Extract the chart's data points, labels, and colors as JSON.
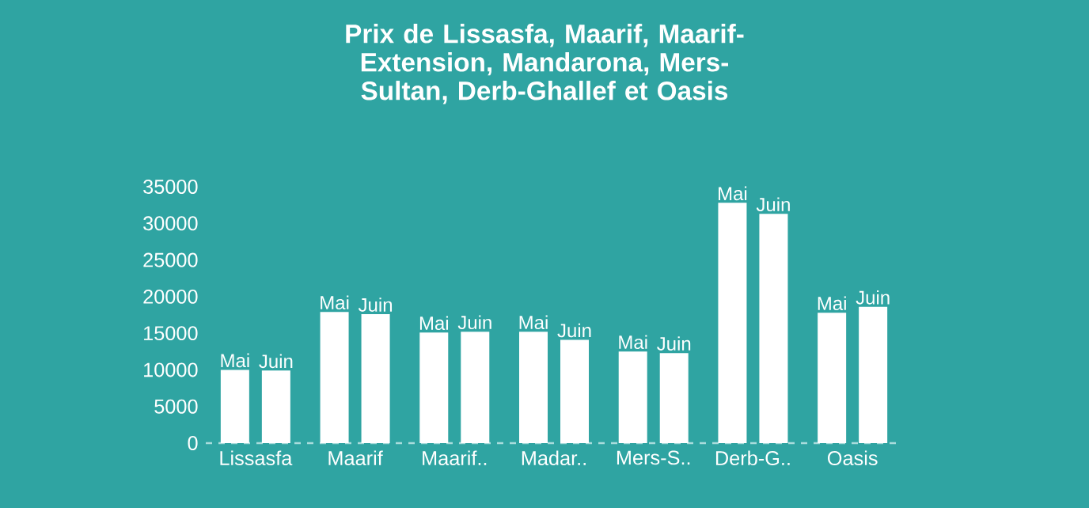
{
  "chart_data": {
    "type": "bar",
    "title": "Prix de Lissasfa, Maarif, Maarif-Extension, Mandarona, Mers-Sultan, Derb-Ghallef et Oasis",
    "categories": [
      "Lissasfa",
      "Maarif",
      "Maarif..",
      "Madar..",
      "Mers-S..",
      "Derb-G..",
      "Oasis"
    ],
    "series": [
      {
        "name": "Mai",
        "color": "#ffffff",
        "values": [
          10000,
          17900,
          15100,
          15200,
          12500,
          32800,
          17800
        ]
      },
      {
        "name": "Juin",
        "color": "#ffffff",
        "values": [
          9900,
          17600,
          15200,
          14100,
          12300,
          31300,
          18600
        ]
      }
    ],
    "ylim": [
      0,
      35000
    ],
    "yticks": [
      0,
      5000,
      10000,
      15000,
      20000,
      25000,
      30000,
      35000
    ],
    "grid": false
  }
}
